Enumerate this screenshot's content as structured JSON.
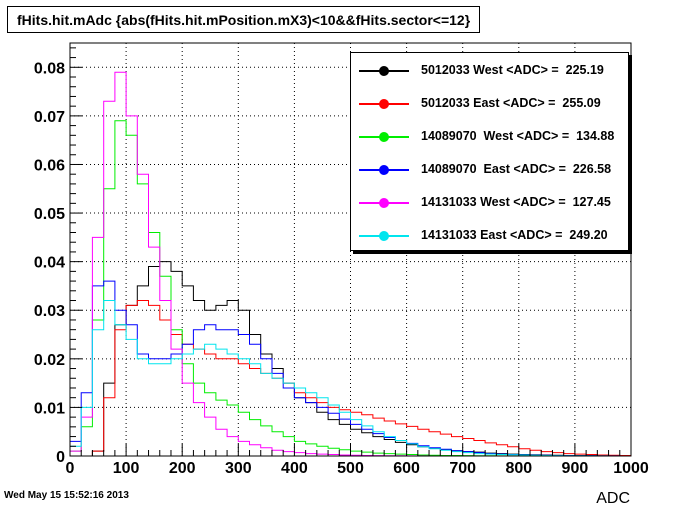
{
  "chart_data": {
    "type": "line",
    "title": "fHits.hit.mAdc {abs(fHits.hit.mPosition.mX3)<10&&fHits.sector<=12}",
    "xlabel": "ADC",
    "ylabel": "",
    "xlim": [
      0,
      1000
    ],
    "ylim": [
      0,
      0.085
    ],
    "x_ticks": [
      0,
      100,
      200,
      300,
      400,
      500,
      600,
      700,
      800,
      900,
      1000
    ],
    "x_tick_labels": [
      "0",
      "100",
      "200",
      "300",
      "400",
      "500",
      "600",
      "700",
      "800",
      "900",
      "1000"
    ],
    "y_ticks": [
      0,
      0.01,
      0.02,
      0.03,
      0.04,
      0.05,
      0.06,
      0.07,
      0.08
    ],
    "y_tick_labels": [
      "0",
      "0.01",
      "0.02",
      "0.03",
      "0.04",
      "0.05",
      "0.06",
      "0.07",
      "0.08"
    ],
    "grid": true,
    "legend_position": "top-right",
    "series": [
      {
        "name": "5012033 West <ADC> =  225.19",
        "color": "#000000",
        "x": [
          0,
          20,
          40,
          60,
          80,
          100,
          120,
          140,
          160,
          180,
          200,
          220,
          240,
          260,
          280,
          300,
          320,
          340,
          360,
          380,
          400,
          420,
          440,
          460,
          480,
          500,
          520,
          540,
          560,
          580,
          600,
          620,
          640,
          660,
          680,
          700,
          720,
          740,
          760,
          780,
          800,
          820,
          840,
          860,
          880,
          900,
          920,
          940,
          960,
          980,
          1000
        ],
        "y": [
          0,
          0,
          0.001,
          0.015,
          0.027,
          0.031,
          0.035,
          0.039,
          0.04,
          0.038,
          0.035,
          0.032,
          0.03,
          0.031,
          0.032,
          0.03,
          0.025,
          0.021,
          0.018,
          0.015,
          0.012,
          0.011,
          0.009,
          0.0075,
          0.0065,
          0.0055,
          0.0048,
          0.004,
          0.0034,
          0.0028,
          0.0023,
          0.0019,
          0.0016,
          0.0013,
          0.0011,
          0.0009,
          0.0008,
          0.0006,
          0.0005,
          0.0004,
          0.0003,
          0.00025,
          0.0002,
          0.00015,
          0.0001,
          0.0001,
          8e-05,
          5e-05,
          4e-05,
          2e-05,
          0
        ]
      },
      {
        "name": "5012033 East <ADC> =  255.09",
        "color": "#ff0000",
        "x": [
          0,
          20,
          40,
          60,
          80,
          100,
          120,
          140,
          160,
          180,
          200,
          220,
          240,
          260,
          280,
          300,
          320,
          340,
          360,
          380,
          400,
          420,
          440,
          460,
          480,
          500,
          520,
          540,
          560,
          580,
          600,
          620,
          640,
          660,
          680,
          700,
          720,
          740,
          760,
          780,
          800,
          820,
          840,
          860,
          880,
          900,
          920,
          940,
          960,
          980,
          1000
        ],
        "y": [
          0,
          0,
          0.001,
          0.012,
          0.026,
          0.031,
          0.032,
          0.031,
          0.028,
          0.025,
          0.023,
          0.022,
          0.021,
          0.02,
          0.02,
          0.019,
          0.018,
          0.017,
          0.016,
          0.015,
          0.013,
          0.012,
          0.011,
          0.01,
          0.0095,
          0.009,
          0.0085,
          0.0078,
          0.0072,
          0.0066,
          0.0061,
          0.0055,
          0.005,
          0.0045,
          0.004,
          0.0036,
          0.0032,
          0.0027,
          0.0023,
          0.0019,
          0.0015,
          0.0012,
          0.0009,
          0.0007,
          0.0005,
          0.0004,
          0.0003,
          0.0002,
          0.00015,
          0.0001,
          5e-05
        ]
      },
      {
        "name": "14089070  West <ADC> =  134.88",
        "color": "#00ee00",
        "x": [
          0,
          20,
          40,
          60,
          80,
          100,
          120,
          140,
          160,
          180,
          200,
          220,
          240,
          260,
          280,
          300,
          320,
          340,
          360,
          380,
          400,
          420,
          440,
          460,
          480,
          500,
          520,
          540,
          560,
          580,
          600,
          620,
          640,
          660,
          680,
          700,
          720,
          740,
          760,
          780,
          800,
          820,
          840,
          860,
          880,
          900,
          920,
          940,
          960,
          980,
          1000
        ],
        "y": [
          0.001,
          0.006,
          0.028,
          0.055,
          0.069,
          0.066,
          0.056,
          0.046,
          0.037,
          0.026,
          0.019,
          0.015,
          0.013,
          0.0115,
          0.0105,
          0.009,
          0.0075,
          0.0062,
          0.005,
          0.004,
          0.003,
          0.0025,
          0.002,
          0.0016,
          0.0013,
          0.001,
          0.0008,
          0.0006,
          0.0005,
          0.0004,
          0.0003,
          0.0002,
          0.00015,
          0.0001,
          0.0001,
          8e-05,
          5e-05,
          4e-05,
          3e-05,
          2e-05,
          1e-05,
          0,
          0,
          0,
          0,
          0,
          0,
          0,
          0,
          0,
          0
        ]
      },
      {
        "name": "14089070  East <ADC> =  226.58",
        "color": "#0000ff",
        "x": [
          0,
          20,
          40,
          60,
          80,
          100,
          120,
          140,
          160,
          180,
          200,
          220,
          240,
          260,
          280,
          300,
          320,
          340,
          360,
          380,
          400,
          420,
          440,
          460,
          480,
          500,
          520,
          540,
          560,
          580,
          600,
          620,
          640,
          660,
          680,
          700,
          720,
          740,
          760,
          780,
          800,
          820,
          840,
          860,
          880,
          900,
          920,
          940,
          960,
          980,
          1000
        ],
        "y": [
          0.003,
          0.013,
          0.035,
          0.036,
          0.03,
          0.027,
          0.021,
          0.02,
          0.02,
          0.021,
          0.023,
          0.026,
          0.027,
          0.026,
          0.026,
          0.025,
          0.023,
          0.02,
          0.017,
          0.014,
          0.012,
          0.011,
          0.01,
          0.0088,
          0.0076,
          0.0065,
          0.0055,
          0.0046,
          0.0038,
          0.0032,
          0.0026,
          0.0021,
          0.0017,
          0.0014,
          0.0011,
          0.0009,
          0.0007,
          0.0005,
          0.0004,
          0.0003,
          0.00025,
          0.0002,
          0.00015,
          0.0001,
          8e-05,
          6e-05,
          4e-05,
          3e-05,
          2e-05,
          1e-05,
          0
        ]
      },
      {
        "name": "14131033 West <ADC> =  127.45",
        "color": "#ff00ff",
        "x": [
          0,
          20,
          40,
          60,
          80,
          100,
          120,
          140,
          160,
          180,
          200,
          220,
          240,
          260,
          280,
          300,
          320,
          340,
          360,
          380,
          400,
          420,
          440,
          460,
          480,
          500,
          520,
          540,
          560,
          580,
          600,
          620,
          640,
          660,
          680,
          700,
          720,
          740,
          760,
          780,
          800,
          820,
          840,
          860,
          880,
          900,
          920,
          940,
          960,
          980,
          1000
        ],
        "y": [
          0.001,
          0.008,
          0.045,
          0.073,
          0.079,
          0.07,
          0.058,
          0.043,
          0.032,
          0.022,
          0.015,
          0.011,
          0.008,
          0.0055,
          0.004,
          0.003,
          0.0023,
          0.0017,
          0.0012,
          0.0009,
          0.0007,
          0.0005,
          0.0004,
          0.0003,
          0.0002,
          0.00015,
          0.0001,
          8e-05,
          5e-05,
          4e-05,
          3e-05,
          2e-05,
          1e-05,
          0,
          0,
          0,
          0,
          0,
          0,
          0,
          0,
          0,
          0,
          0,
          0,
          0,
          0,
          0,
          0,
          0,
          0
        ]
      },
      {
        "name": "14131033 East <ADC> =  249.20",
        "color": "#00e5ee",
        "x": [
          0,
          20,
          40,
          60,
          80,
          100,
          120,
          140,
          160,
          180,
          200,
          220,
          240,
          260,
          280,
          300,
          320,
          340,
          360,
          380,
          400,
          420,
          440,
          460,
          480,
          500,
          520,
          540,
          560,
          580,
          600,
          620,
          640,
          660,
          680,
          700,
          720,
          740,
          760,
          780,
          800,
          820,
          840,
          860,
          880,
          900,
          920,
          940,
          960,
          980,
          1000
        ],
        "y": [
          0.002,
          0.01,
          0.026,
          0.032,
          0.027,
          0.024,
          0.02,
          0.019,
          0.019,
          0.02,
          0.021,
          0.022,
          0.023,
          0.022,
          0.021,
          0.02,
          0.019,
          0.017,
          0.016,
          0.015,
          0.014,
          0.013,
          0.012,
          0.0105,
          0.009,
          0.0075,
          0.0062,
          0.005,
          0.004,
          0.0032,
          0.0025,
          0.0019,
          0.0015,
          0.0012,
          0.0009,
          0.0007,
          0.0005,
          0.0004,
          0.0003,
          0.00025,
          0.0002,
          0.00015,
          0.0001,
          8e-05,
          6e-05,
          4e-05,
          3e-05,
          2e-05,
          1e-05,
          0,
          0
        ]
      }
    ]
  },
  "footer_text": "Wed May 15 15:52:16 2013"
}
